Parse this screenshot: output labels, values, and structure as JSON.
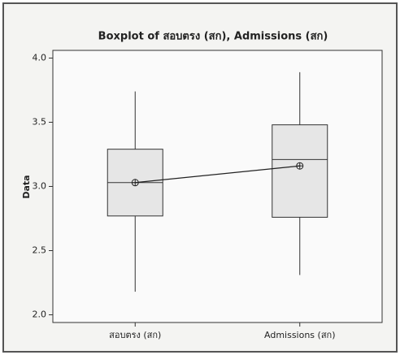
{
  "chart_data": {
    "type": "box",
    "title": "Boxplot of สอบตรง (สก), Admissions (สก)",
    "y_label": "Data",
    "categories": [
      "สอบตรง (สก)",
      "Admissions (สก)"
    ],
    "boxes": [
      {
        "min": 2.18,
        "q1": 2.77,
        "median": 3.03,
        "q3": 3.29,
        "max": 3.74,
        "mean": 3.03
      },
      {
        "min": 2.31,
        "q1": 2.76,
        "median": 3.21,
        "q3": 3.48,
        "max": 3.89,
        "mean": 3.16
      }
    ],
    "box_color": "#e6e6e6",
    "ylim": [
      1.94,
      4.06
    ],
    "yticks": [
      {
        "value": 2,
        "label": "2.0"
      },
      {
        "value": 2.5,
        "label": "2.5"
      },
      {
        "value": 3,
        "label": "3.0"
      },
      {
        "value": 3.5,
        "label": "3.5"
      },
      {
        "value": 4,
        "label": "4.0"
      }
    ]
  }
}
